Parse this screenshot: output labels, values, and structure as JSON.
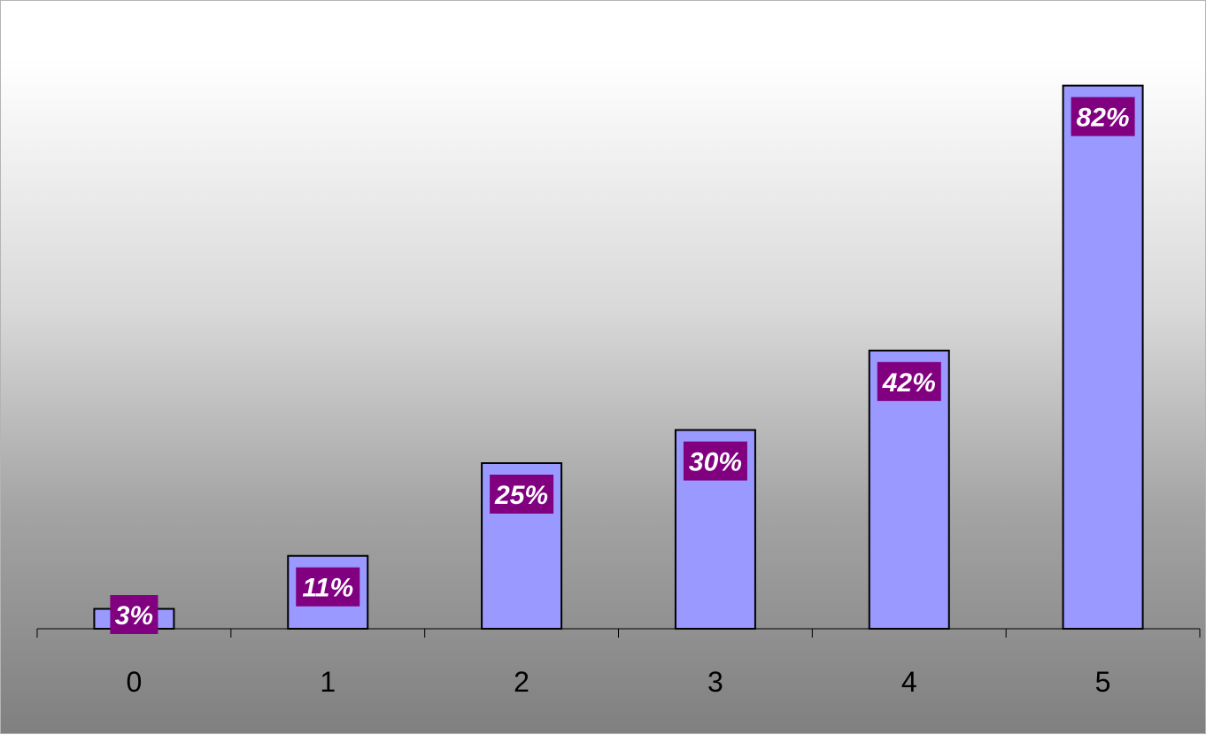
{
  "chart_data": {
    "type": "bar",
    "categories": [
      "0",
      "1",
      "2",
      "3",
      "4",
      "5"
    ],
    "values": [
      3,
      11,
      25,
      30,
      42,
      82
    ],
    "data_labels": [
      "3%",
      "11%",
      "25%",
      "30%",
      "42%",
      "82%"
    ],
    "unit": "%",
    "title": "",
    "xlabel": "",
    "ylabel": "",
    "ylim": [
      0,
      90
    ],
    "grid": false,
    "legend": "none",
    "colors": {
      "bar_fill": "#9999ff",
      "bar_stroke": "#000000",
      "label_background": "#800080",
      "label_text": "#ffffff"
    }
  }
}
